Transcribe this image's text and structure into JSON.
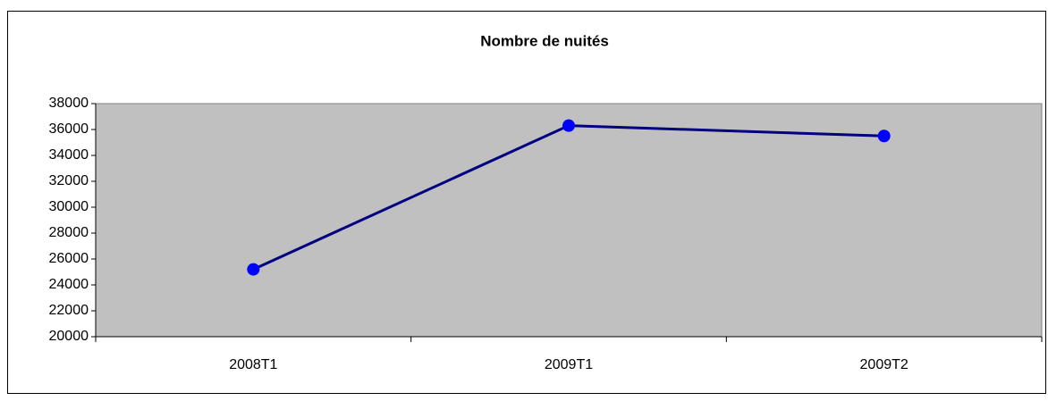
{
  "chart_data": {
    "type": "line",
    "title": "Nombre de nuités",
    "categories": [
      "2008T1",
      "2009T1",
      "2009T2"
    ],
    "series": [
      {
        "name": "Nombre de nuités",
        "color": "#000080",
        "marker_color": "#0000ff",
        "values": [
          25200,
          36300,
          35500
        ]
      }
    ],
    "ylim": [
      20000,
      38000
    ],
    "yticks": [
      20000,
      22000,
      24000,
      26000,
      28000,
      30000,
      32000,
      34000,
      36000,
      38000
    ],
    "plot_background": "#c0c0c0"
  }
}
